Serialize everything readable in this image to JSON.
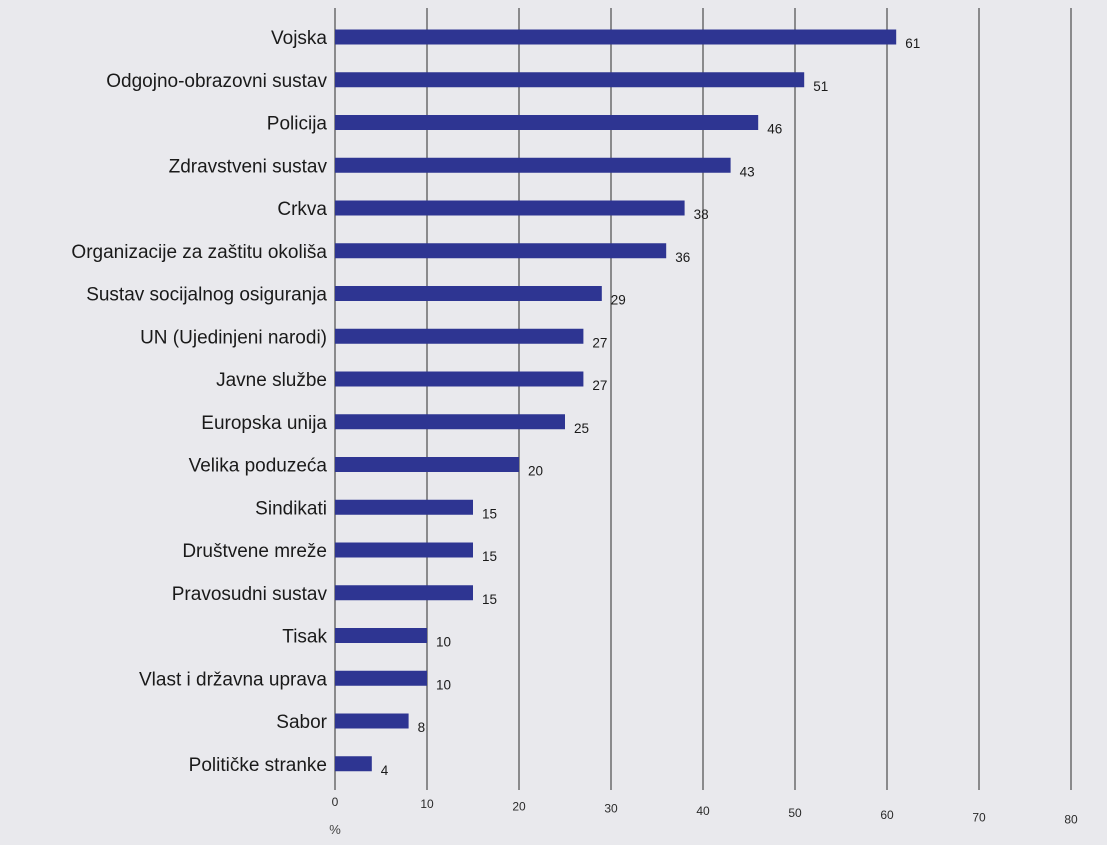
{
  "chart_data": {
    "type": "bar",
    "orientation": "horizontal",
    "categories": [
      "Vojska",
      "Odgojno-obrazovni sustav",
      "Policija",
      "Zdravstveni sustav",
      "Crkva",
      "Organizacije za zaštitu okoliša",
      "Sustav socijalnog osiguranja",
      "UN (Ujedinjeni narodi)",
      "Javne službe",
      "Europska unija",
      "Velika poduzeća",
      "Sindikati",
      "Društvene mreže",
      "Pravosudni sustav",
      "Tisak",
      "Vlast i državna uprava",
      "Sabor",
      "Političke stranke"
    ],
    "values": [
      61,
      51,
      46,
      43,
      38,
      36,
      29,
      27,
      27,
      25,
      20,
      15,
      15,
      15,
      10,
      10,
      8,
      4
    ],
    "xlim": [
      0,
      80
    ],
    "xticks": [
      0,
      10,
      20,
      30,
      40,
      50,
      60,
      70,
      80
    ],
    "xlabel": "%",
    "bar_color": "#2e3592",
    "grid": true,
    "title": ""
  }
}
